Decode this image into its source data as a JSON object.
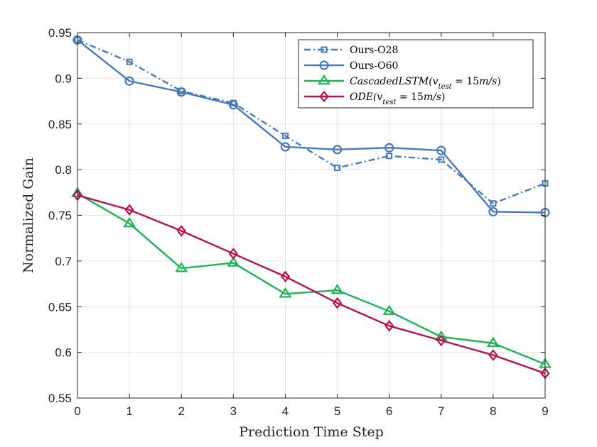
{
  "chart_data": {
    "type": "line",
    "xlabel": "Prediction Time Step",
    "ylabel": "Normalized Gain",
    "xlim": [
      0,
      9
    ],
    "ylim": [
      0.55,
      0.95
    ],
    "x_ticks": [
      "0",
      "1",
      "2",
      "3",
      "4",
      "5",
      "6",
      "7",
      "8",
      "9"
    ],
    "y_ticks": [
      "0.55",
      "0.6",
      "0.65",
      "0.7",
      "0.75",
      "0.8",
      "0.85",
      "0.9",
      "0.95"
    ],
    "grid": true,
    "legend_position": "top-right",
    "x": [
      0,
      1,
      2,
      3,
      4,
      5,
      6,
      7,
      8,
      9
    ],
    "series": [
      {
        "name": "Ours-O28",
        "legend_parts": [
          {
            "text": "Ours-O28",
            "italic": false
          }
        ],
        "color": "#4a7ab5",
        "marker": "square",
        "line": "dashdot",
        "values": [
          0.942,
          0.918,
          0.886,
          0.873,
          0.837,
          0.802,
          0.815,
          0.811,
          0.763,
          0.785
        ]
      },
      {
        "name": "Ours-O60",
        "legend_parts": [
          {
            "text": "Ours-O60",
            "italic": false
          }
        ],
        "color": "#4a7ab5",
        "marker": "circle",
        "line": "solid",
        "values": [
          0.942,
          0.897,
          0.885,
          0.871,
          0.825,
          0.822,
          0.824,
          0.821,
          0.754,
          0.753
        ]
      },
      {
        "name": "CascadedLSTM(v_test = 15m/s)",
        "legend_parts": [
          {
            "text": "CascadedLSTM(",
            "italic": true
          },
          {
            "text": "v",
            "italic": true
          },
          {
            "text": "test",
            "italic": true,
            "sub": true
          },
          {
            "text": " = 15",
            "italic": false
          },
          {
            "text": "m/s",
            "italic": true
          },
          {
            "text": ")",
            "italic": false
          }
        ],
        "color": "#1db356",
        "marker": "triangle",
        "line": "solid",
        "values": [
          0.774,
          0.741,
          0.692,
          0.698,
          0.664,
          0.668,
          0.645,
          0.617,
          0.61,
          0.587
        ]
      },
      {
        "name": "ODE(v_test = 15m/s)",
        "legend_parts": [
          {
            "text": "ODE(",
            "italic": true
          },
          {
            "text": "v",
            "italic": true
          },
          {
            "text": "test",
            "italic": true,
            "sub": true
          },
          {
            "text": " = 15",
            "italic": false
          },
          {
            "text": "m/s",
            "italic": true
          },
          {
            "text": ")",
            "italic": false
          }
        ],
        "color": "#b5124e",
        "marker": "diamond",
        "line": "solid",
        "values": [
          0.772,
          0.756,
          0.733,
          0.708,
          0.683,
          0.654,
          0.629,
          0.613,
          0.597,
          0.577
        ]
      }
    ]
  }
}
